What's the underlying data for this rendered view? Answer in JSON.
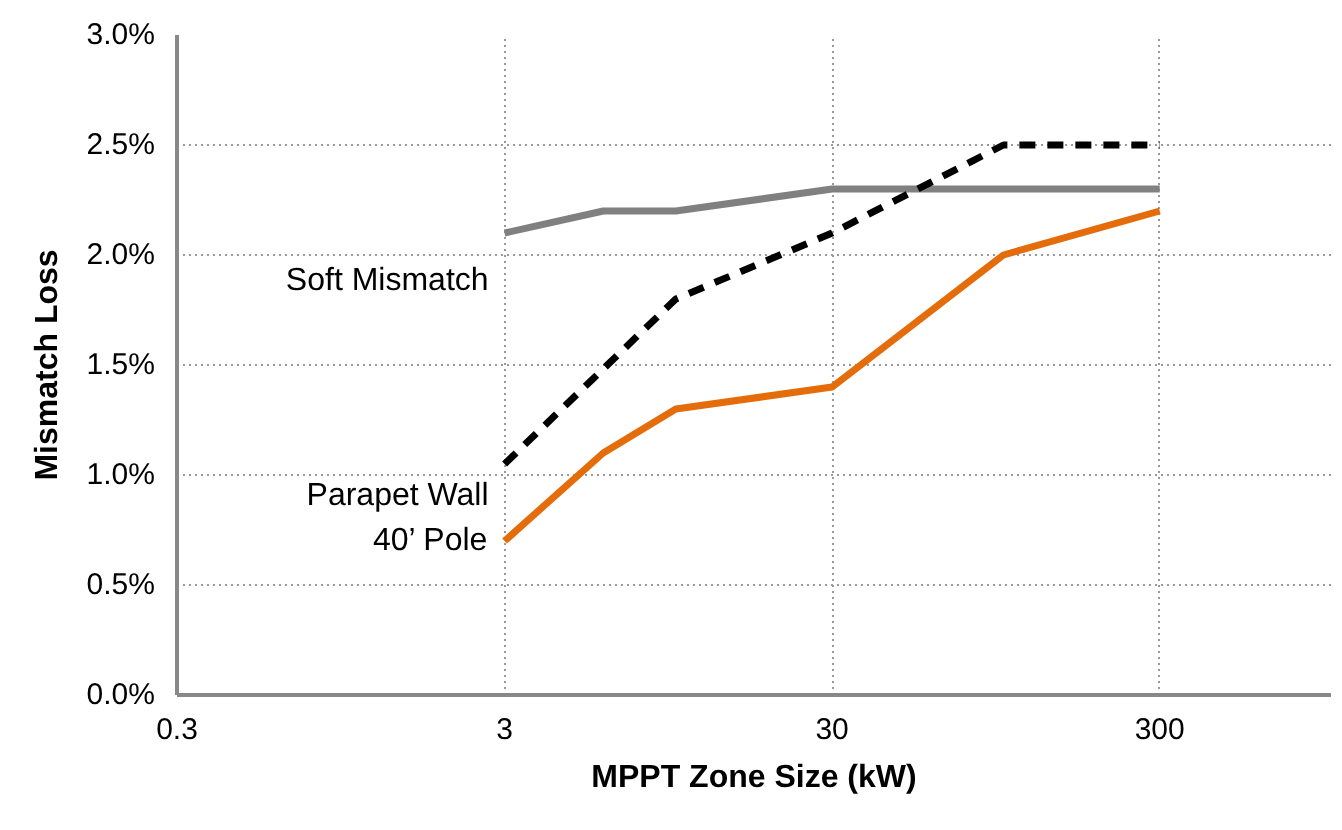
{
  "chart_data": {
    "type": "line",
    "xlabel": "MPPT Zone Size (kW)",
    "ylabel": "Mismatch Loss",
    "log": "x",
    "xlim": [
      0.3,
      1000
    ],
    "xticks": [
      0.3,
      3,
      30,
      300
    ],
    "ylim": [
      0,
      3
    ],
    "yticks": [
      {
        "value": 0,
        "label": "0.0%"
      },
      {
        "value": 0.5,
        "label": "0.5%"
      },
      {
        "value": 1,
        "label": "1.0%"
      },
      {
        "value": 1.5,
        "label": "1.5%"
      },
      {
        "value": 2,
        "label": "2.0%"
      },
      {
        "value": 2.5,
        "label": "2.5%"
      },
      {
        "value": 3,
        "label": "3.0%"
      }
    ],
    "grid": true,
    "marker": "none",
    "series": [
      {
        "name": "Soft Mismatch",
        "color": "#808080",
        "line_style": "solid",
        "x": [
          3,
          6,
          10,
          30,
          100,
          300
        ],
        "values": [
          2.1,
          2.2,
          2.2,
          2.3,
          2.3,
          2.3
        ]
      },
      {
        "name": "Parapet Wall",
        "color": "#000000",
        "line_style": "dashed",
        "x": [
          3,
          10,
          30,
          100,
          300
        ],
        "values": [
          1.05,
          1.8,
          2.1,
          2.5,
          2.5
        ]
      },
      {
        "name": "40’ Pole",
        "color": "#e46c0a",
        "line_style": "solid",
        "x": [
          3,
          6,
          10,
          30,
          100,
          300
        ],
        "values": [
          0.7,
          1.1,
          1.3,
          1.4,
          2.0,
          2.2
        ]
      }
    ]
  }
}
